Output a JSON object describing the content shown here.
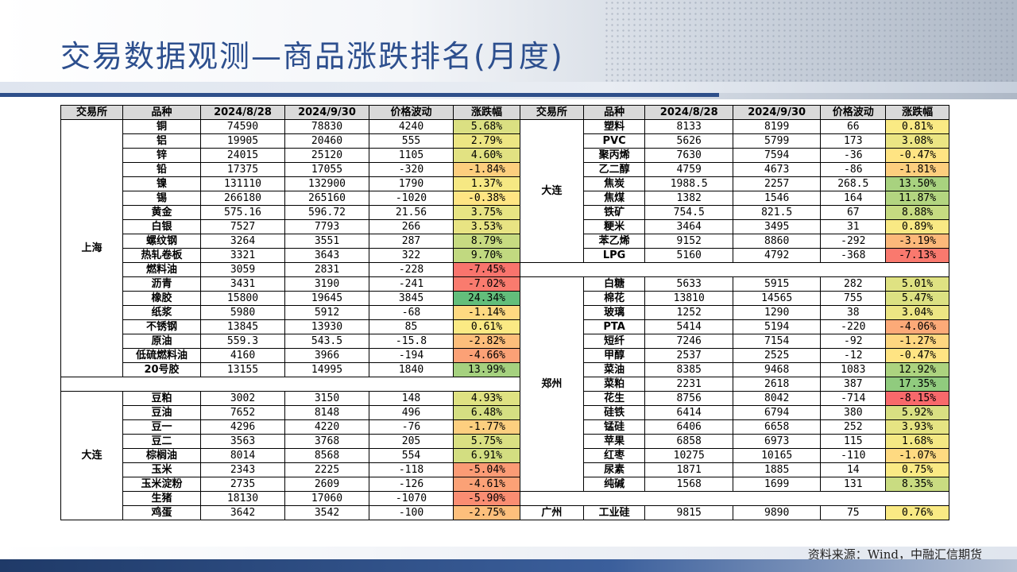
{
  "title": "交易数据观测—商品涨跌排名(月度)",
  "source": "资料来源：Wind，中融汇信期货",
  "headers": [
    "交易所",
    "品种",
    "2024/8/28",
    "2024/9/30",
    "价格波动",
    "涨跌幅"
  ],
  "left": [
    {
      "exchange": "上海",
      "rows": [
        [
          "铜",
          "74590",
          "78830",
          "4240",
          "5.68%"
        ],
        [
          "铝",
          "19905",
          "20460",
          "555",
          "2.79%"
        ],
        [
          "锌",
          "24015",
          "25120",
          "1105",
          "4.60%"
        ],
        [
          "铅",
          "17375",
          "17055",
          "-320",
          "-1.84%"
        ],
        [
          "镍",
          "131110",
          "132900",
          "1790",
          "1.37%"
        ],
        [
          "锡",
          "266180",
          "265160",
          "-1020",
          "-0.38%"
        ],
        [
          "黄金",
          "575.16",
          "596.72",
          "21.56",
          "3.75%"
        ],
        [
          "白银",
          "7527",
          "7793",
          "266",
          "3.53%"
        ],
        [
          "螺纹钢",
          "3264",
          "3551",
          "287",
          "8.79%"
        ],
        [
          "热轧卷板",
          "3321",
          "3643",
          "322",
          "9.70%"
        ],
        [
          "燃料油",
          "3059",
          "2831",
          "-228",
          "-7.45%"
        ],
        [
          "沥青",
          "3431",
          "3190",
          "-241",
          "-7.02%"
        ],
        [
          "橡胶",
          "15800",
          "19645",
          "3845",
          "24.34%"
        ],
        [
          "纸浆",
          "5980",
          "5912",
          "-68",
          "-1.14%"
        ],
        [
          "不锈钢",
          "13845",
          "13930",
          "85",
          "0.61%"
        ],
        [
          "原油",
          "559.3",
          "543.5",
          "-15.8",
          "-2.82%"
        ],
        [
          "低硫燃料油",
          "4160",
          "3966",
          "-194",
          "-4.66%"
        ],
        [
          "20号胶",
          "13155",
          "14995",
          "1840",
          "13.99%"
        ]
      ]
    },
    {
      "exchange": "大连",
      "rows": [
        [
          "豆粕",
          "3002",
          "3150",
          "148",
          "4.93%"
        ],
        [
          "豆油",
          "7652",
          "8148",
          "496",
          "6.48%"
        ],
        [
          "豆一",
          "4296",
          "4220",
          "-76",
          "-1.77%"
        ],
        [
          "豆二",
          "3563",
          "3768",
          "205",
          "5.75%"
        ],
        [
          "棕榈油",
          "8014",
          "8568",
          "554",
          "6.91%"
        ],
        [
          "玉米",
          "2343",
          "2225",
          "-118",
          "-5.04%"
        ],
        [
          "玉米淀粉",
          "2735",
          "2609",
          "-126",
          "-4.61%"
        ],
        [
          "生猪",
          "18130",
          "17060",
          "-1070",
          "-5.90%"
        ],
        [
          "鸡蛋",
          "3642",
          "3542",
          "-100",
          "-2.75%"
        ]
      ]
    }
  ],
  "right": [
    {
      "exchange": "大连",
      "rows": [
        [
          "塑料",
          "8133",
          "8199",
          "66",
          "0.81%"
        ],
        [
          "PVC",
          "5626",
          "5799",
          "173",
          "3.08%"
        ],
        [
          "聚丙烯",
          "7630",
          "7594",
          "-36",
          "-0.47%"
        ],
        [
          "乙二醇",
          "4759",
          "4673",
          "-86",
          "-1.81%"
        ],
        [
          "焦炭",
          "1988.5",
          "2257",
          "268.5",
          "13.50%"
        ],
        [
          "焦煤",
          "1382",
          "1546",
          "164",
          "11.87%"
        ],
        [
          "铁矿",
          "754.5",
          "821.5",
          "67",
          "8.88%"
        ],
        [
          "粳米",
          "3464",
          "3495",
          "31",
          "0.89%"
        ],
        [
          "苯乙烯",
          "9152",
          "8860",
          "-292",
          "-3.19%"
        ],
        [
          "LPG",
          "5160",
          "4792",
          "-368",
          "-7.13%"
        ]
      ]
    },
    {
      "exchange": "郑州",
      "rows": [
        [
          "白糖",
          "5633",
          "5915",
          "282",
          "5.01%"
        ],
        [
          "棉花",
          "13810",
          "14565",
          "755",
          "5.47%"
        ],
        [
          "玻璃",
          "1252",
          "1290",
          "38",
          "3.04%"
        ],
        [
          "PTA",
          "5414",
          "5194",
          "-220",
          "-4.06%"
        ],
        [
          "短纤",
          "7246",
          "7154",
          "-92",
          "-1.27%"
        ],
        [
          "甲醇",
          "2537",
          "2525",
          "-12",
          "-0.47%"
        ],
        [
          "菜油",
          "8385",
          "9468",
          "1083",
          "12.92%"
        ],
        [
          "菜粕",
          "2231",
          "2618",
          "387",
          "17.35%"
        ],
        [
          "花生",
          "8756",
          "8042",
          "-714",
          "-8.15%"
        ],
        [
          "硅铁",
          "6414",
          "6794",
          "380",
          "5.92%"
        ],
        [
          "锰硅",
          "6406",
          "6658",
          "252",
          "3.93%"
        ],
        [
          "苹果",
          "6858",
          "6973",
          "115",
          "1.68%"
        ],
        [
          "红枣",
          "10275",
          "10165",
          "-110",
          "-1.07%"
        ],
        [
          "尿素",
          "1871",
          "1885",
          "14",
          "0.75%"
        ],
        [
          "纯碱",
          "1568",
          "1699",
          "131",
          "8.35%"
        ]
      ]
    },
    {
      "exchange": "广州",
      "rows": [
        [
          "工业硅",
          "9815",
          "9890",
          "75",
          "0.76%"
        ]
      ]
    }
  ],
  "scale_colors": {
    "max_up": "#63be7b",
    "mid": "#ffeb84",
    "max_down": "#f8696b"
  }
}
